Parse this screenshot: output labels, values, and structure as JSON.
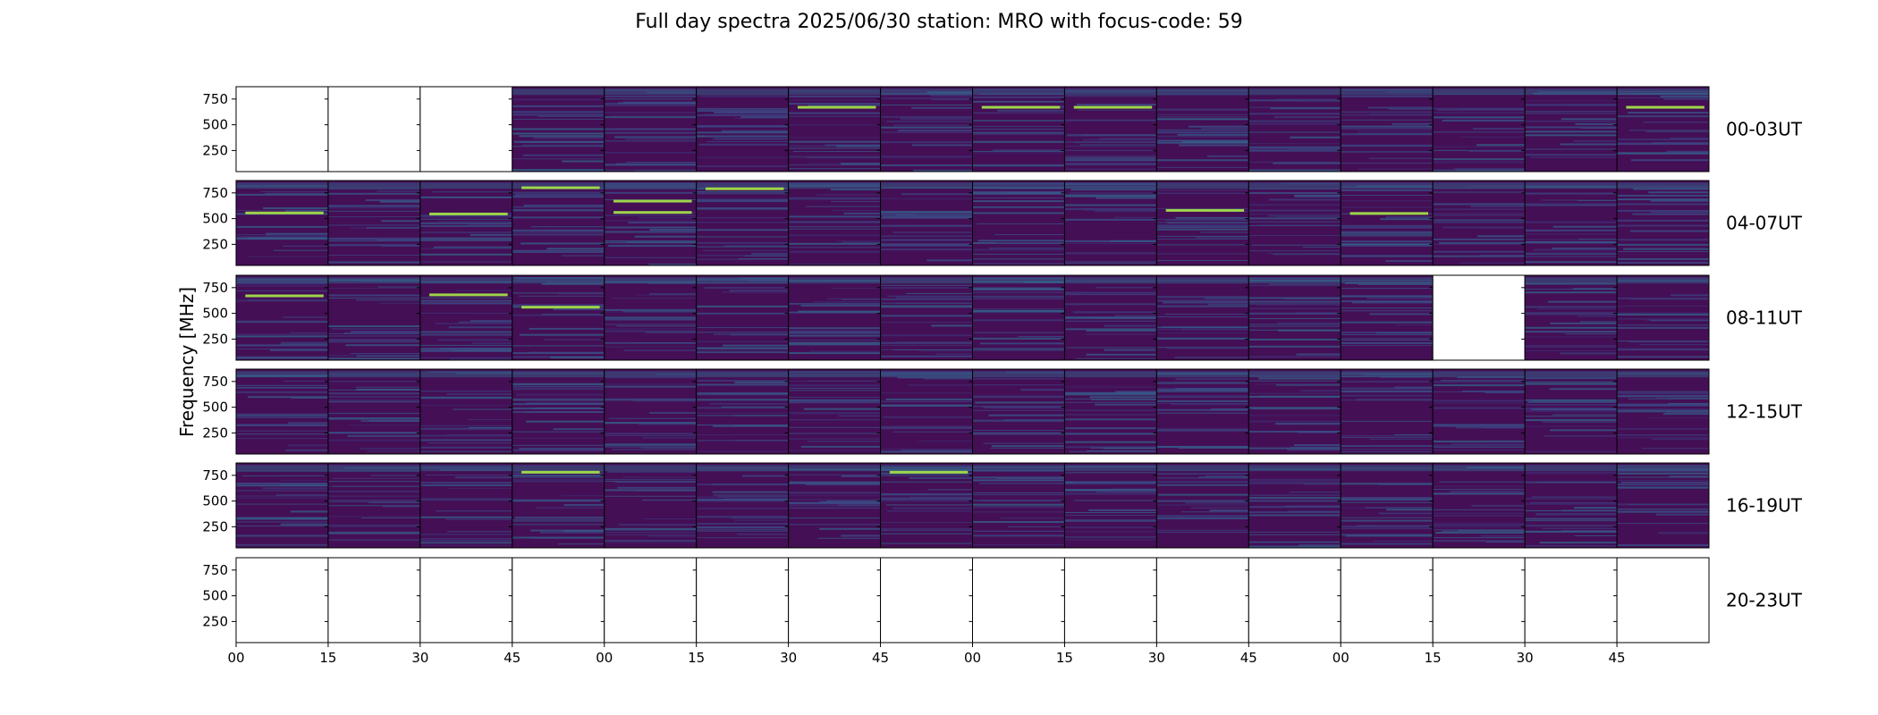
{
  "chart_data": {
    "type": "heatmap",
    "title": "Full day spectra 2025/06/30 station: MRO with focus-code: 59",
    "ylabel": "Frequency [MHz]",
    "xlabel": "",
    "y_ticks": [
      "750",
      "500",
      "250"
    ],
    "ylim": [
      45,
      870
    ],
    "x_ticks": [
      "00",
      "15",
      "30",
      "45",
      "00",
      "15",
      "30",
      "45",
      "00",
      "15",
      "30",
      "45",
      "00",
      "15",
      "30",
      "45"
    ],
    "colormap": "viridis",
    "panels_per_row": 16,
    "minutes_per_panel": 15,
    "rows": [
      {
        "label": "00-03UT",
        "available": [
          false,
          false,
          false,
          true,
          true,
          true,
          true,
          true,
          true,
          true,
          true,
          true,
          true,
          true,
          true,
          true
        ]
      },
      {
        "label": "04-07UT",
        "available": [
          true,
          true,
          true,
          true,
          true,
          true,
          true,
          true,
          true,
          true,
          true,
          true,
          true,
          true,
          true,
          true
        ]
      },
      {
        "label": "08-11UT",
        "available": [
          true,
          true,
          true,
          true,
          true,
          true,
          true,
          true,
          true,
          true,
          true,
          true,
          true,
          false,
          true,
          true
        ]
      },
      {
        "label": "12-15UT",
        "available": [
          true,
          true,
          true,
          true,
          true,
          true,
          true,
          true,
          true,
          true,
          true,
          true,
          true,
          true,
          true,
          true
        ]
      },
      {
        "label": "16-19UT",
        "available": [
          true,
          true,
          true,
          true,
          true,
          true,
          true,
          true,
          true,
          true,
          true,
          true,
          true,
          true,
          true,
          true
        ]
      },
      {
        "label": "20-23UT",
        "available": [
          false,
          false,
          false,
          false,
          false,
          false,
          false,
          false,
          false,
          false,
          false,
          false,
          false,
          false,
          false,
          false
        ]
      }
    ],
    "bright_lines": [
      {
        "row": 0,
        "panel": 6,
        "freq": 670
      },
      {
        "row": 0,
        "panel": 8,
        "freq": 670
      },
      {
        "row": 0,
        "panel": 9,
        "freq": 670
      },
      {
        "row": 0,
        "panel": 15,
        "freq": 670
      },
      {
        "row": 1,
        "panel": 0,
        "freq": 555
      },
      {
        "row": 1,
        "panel": 2,
        "freq": 545
      },
      {
        "row": 1,
        "panel": 3,
        "freq": 800
      },
      {
        "row": 1,
        "panel": 4,
        "freq": 670
      },
      {
        "row": 1,
        "panel": 4,
        "freq": 560
      },
      {
        "row": 1,
        "panel": 5,
        "freq": 790
      },
      {
        "row": 1,
        "panel": 10,
        "freq": 580
      },
      {
        "row": 1,
        "panel": 12,
        "freq": 550
      },
      {
        "row": 2,
        "panel": 0,
        "freq": 670
      },
      {
        "row": 2,
        "panel": 2,
        "freq": 680
      },
      {
        "row": 2,
        "panel": 3,
        "freq": 560
      },
      {
        "row": 4,
        "panel": 3,
        "freq": 780
      },
      {
        "row": 4,
        "panel": 7,
        "freq": 780
      }
    ],
    "colors": {
      "panel_bg": "#440f55",
      "axes": "#000000"
    }
  }
}
